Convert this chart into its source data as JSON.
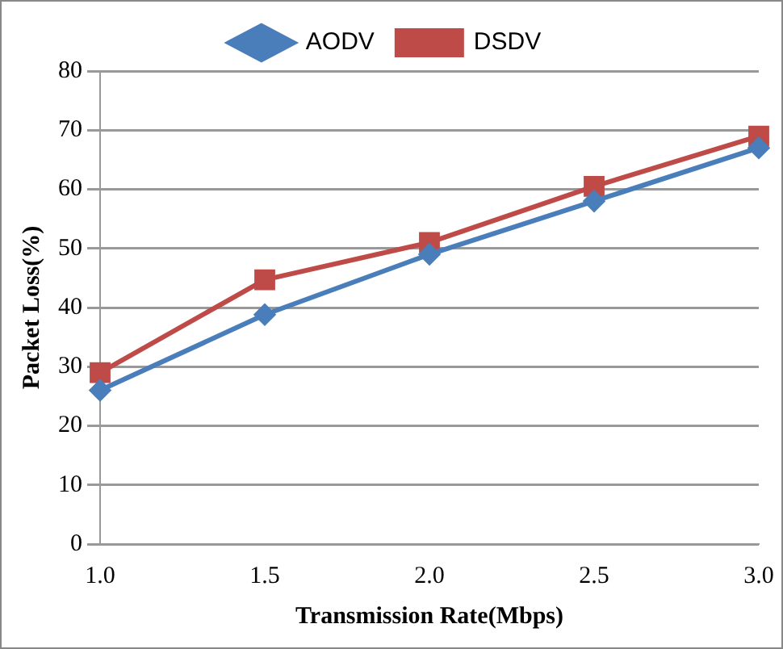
{
  "chart_data": {
    "type": "line",
    "xlabel": "Transmission Rate(Mbps)",
    "ylabel": "Packet Loss(%)",
    "categories": [
      "1.0",
      "1.5",
      "2.0",
      "2.5",
      "3.0"
    ],
    "series": [
      {
        "name": "AODV",
        "color": "#4a7ebb",
        "marker": "diamond",
        "values": [
          26,
          38.8,
          49,
          58,
          67
        ]
      },
      {
        "name": "DSDV",
        "color": "#be4b48",
        "marker": "square",
        "values": [
          29,
          44.7,
          51,
          60.5,
          69
        ]
      }
    ],
    "ylim": [
      0,
      80
    ],
    "yticks": [
      0,
      10,
      20,
      30,
      40,
      50,
      60,
      70,
      80
    ],
    "grid": "y",
    "legend": "top",
    "line_style": "solid"
  }
}
